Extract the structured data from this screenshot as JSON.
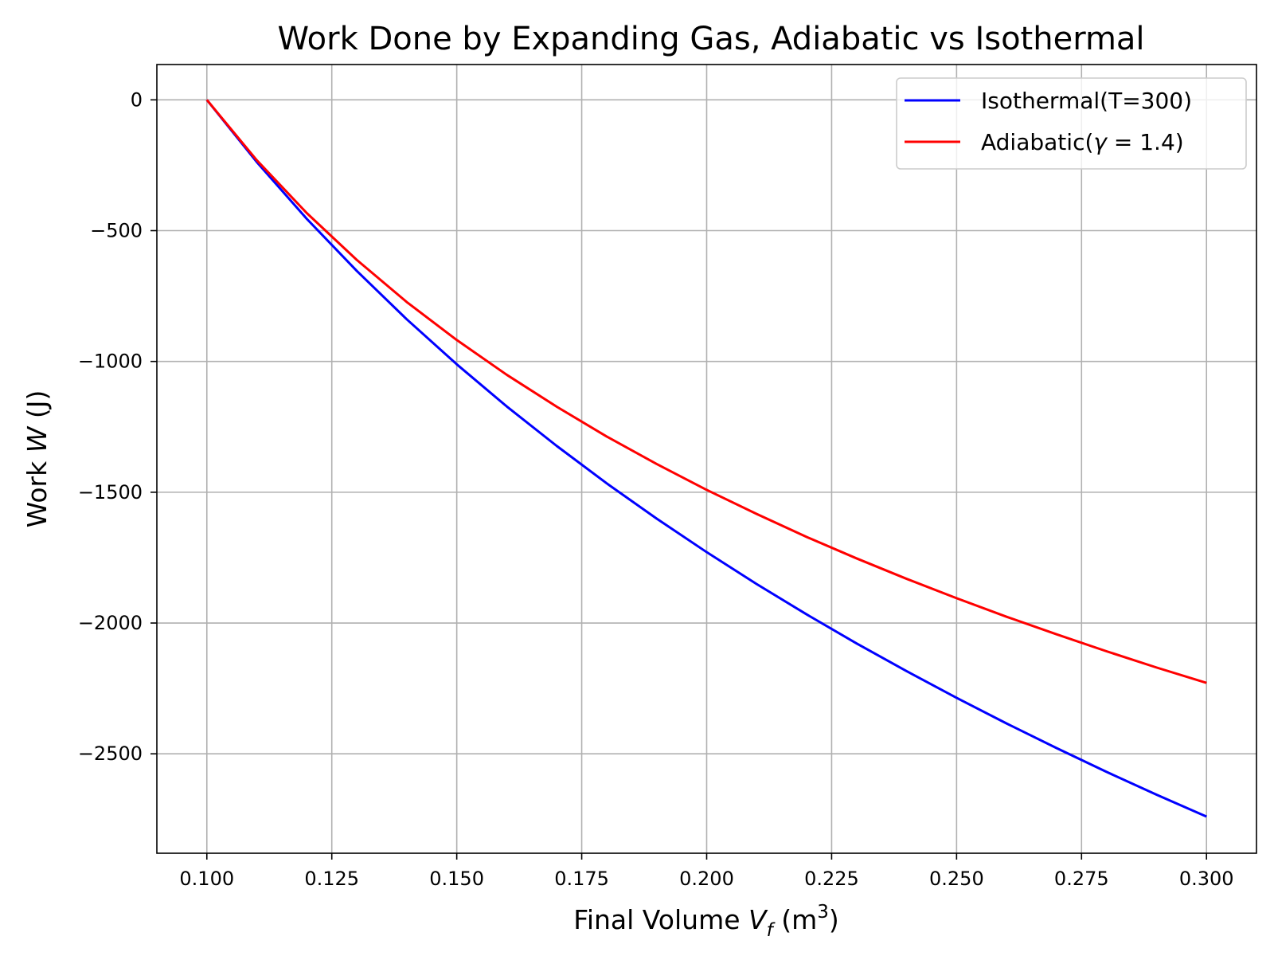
{
  "chart_data": {
    "type": "line",
    "title": "Work Done by Expanding Gas, Adiabatic vs Isothermal",
    "xlabel": {
      "prefix": "Final Volume ",
      "var": "V",
      "sub": "f",
      "unit_open": " (m",
      "unit_sup": "3",
      "unit_close": ")"
    },
    "ylabel": {
      "prefix": "Work ",
      "var": "W",
      "suffix": " (J)"
    },
    "xlim": [
      0.09,
      0.31
    ],
    "ylim": [
      -2880,
      135
    ],
    "x_ticks": [
      0.1,
      0.125,
      0.15,
      0.175,
      0.2,
      0.225,
      0.25,
      0.275,
      0.3
    ],
    "x_tick_labels": [
      "0.100",
      "0.125",
      "0.150",
      "0.175",
      "0.200",
      "0.225",
      "0.250",
      "0.275",
      "0.300"
    ],
    "y_ticks": [
      0,
      -500,
      -1000,
      -1500,
      -2000,
      -2500
    ],
    "y_tick_labels": [
      "0",
      "−500",
      "−1000",
      "−1500",
      "−2000",
      "−2500"
    ],
    "grid": true,
    "legend_position": "top-right",
    "series": [
      {
        "name": "Isothermal(T=300)",
        "color": "#0000ff",
        "x": [
          0.1,
          0.11,
          0.12,
          0.13,
          0.14,
          0.15,
          0.16,
          0.17,
          0.18,
          0.19,
          0.2,
          0.21,
          0.22,
          0.23,
          0.24,
          0.25,
          0.26,
          0.27,
          0.28,
          0.29,
          0.3
        ],
        "y": [
          0,
          -238,
          -455,
          -654,
          -839,
          -1011,
          -1172,
          -1323,
          -1466,
          -1601,
          -1729,
          -1851,
          -1967,
          -2078,
          -2184,
          -2286,
          -2384,
          -2478,
          -2569,
          -2656,
          -2740
        ]
      },
      {
        "name": "Adiabatic(γ = 1.4)",
        "legend_parts": {
          "prefix": "Adiabatic(",
          "symbol": "γ",
          "rest": " = 1.4)"
        },
        "color": "#ff0000",
        "x": [
          0.1,
          0.11,
          0.12,
          0.13,
          0.14,
          0.15,
          0.16,
          0.17,
          0.18,
          0.19,
          0.2,
          0.21,
          0.22,
          0.23,
          0.24,
          0.25,
          0.26,
          0.27,
          0.28,
          0.29,
          0.3
        ],
        "y": [
          0,
          -231,
          -433,
          -612,
          -773,
          -918,
          -1051,
          -1173,
          -1287,
          -1392,
          -1491,
          -1583,
          -1671,
          -1753,
          -1831,
          -1905,
          -1976,
          -2043,
          -2108,
          -2170,
          -2229
        ]
      }
    ]
  }
}
